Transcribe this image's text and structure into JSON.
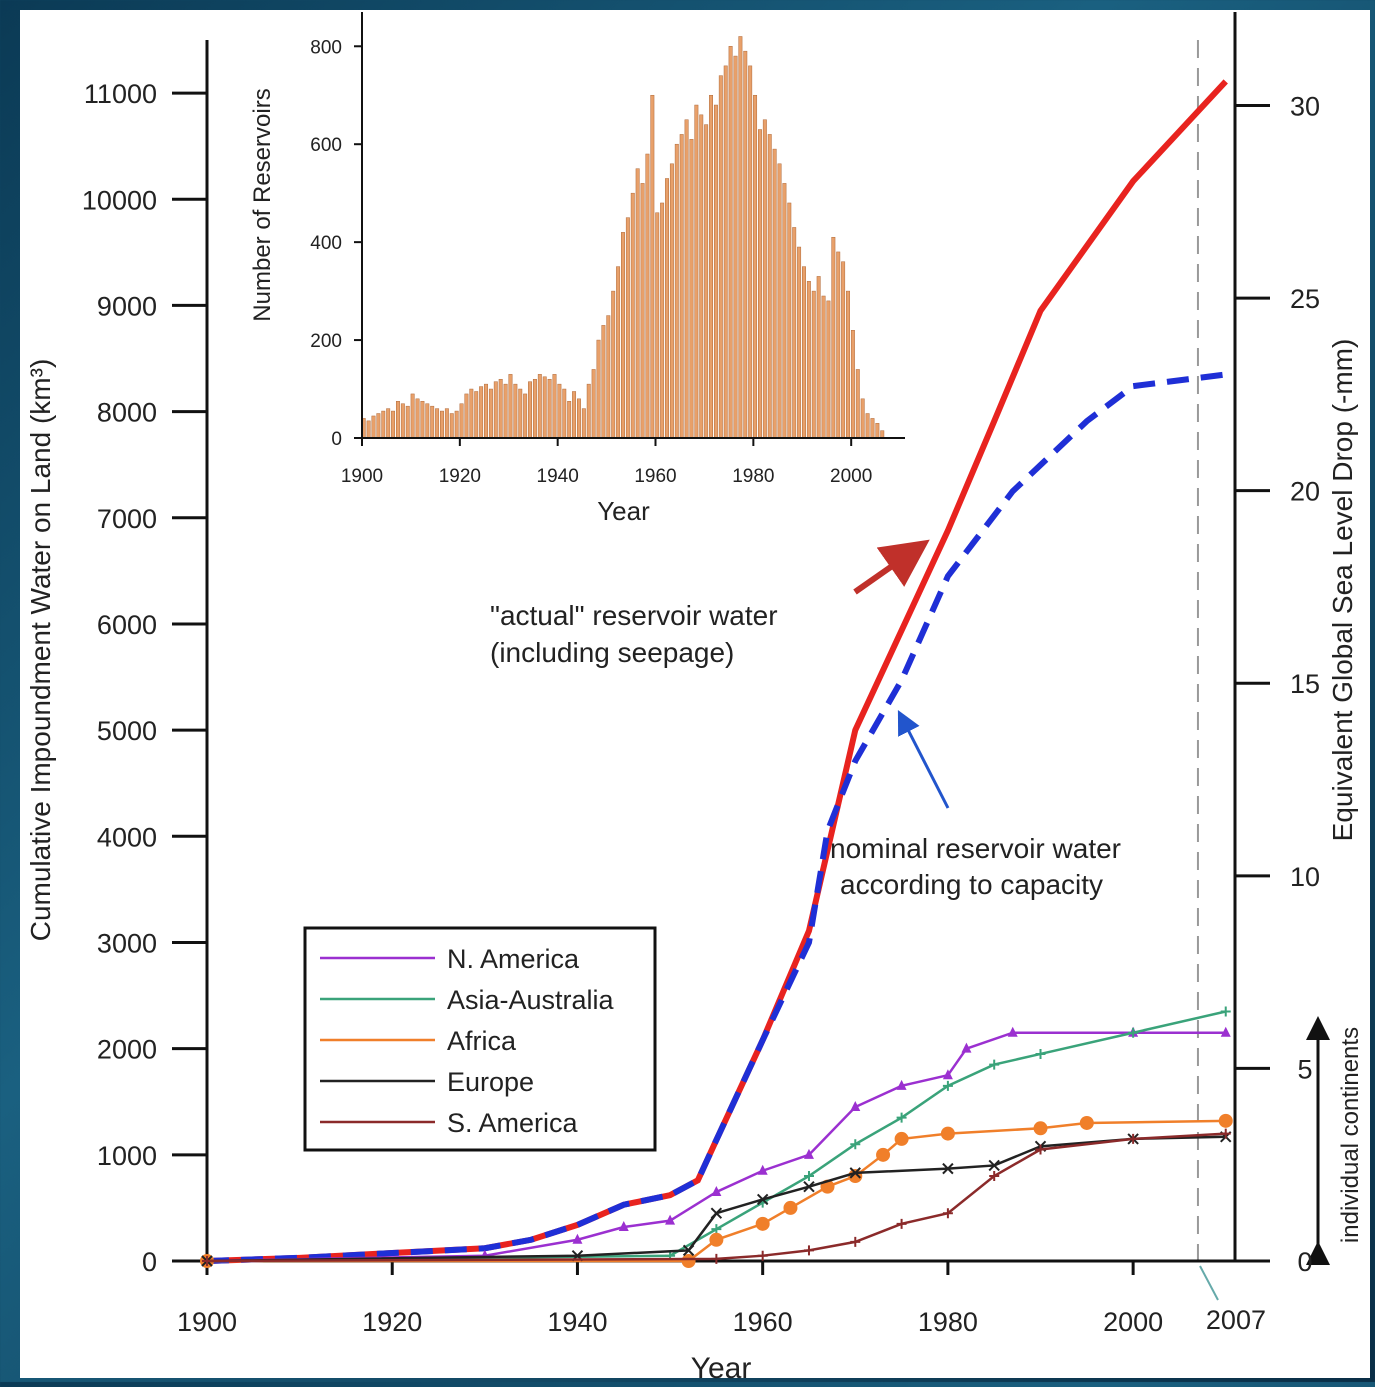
{
  "chart_data": [
    {
      "type": "line",
      "x_label": "Year",
      "y_label": "Cumulative Impoundment Water on Land (km³)",
      "y2_label": "Equivalent Global Sea Level Drop (-mm)",
      "xlim": [
        1900,
        2011
      ],
      "xticks": [
        1900,
        1920,
        1940,
        1960,
        1980,
        2000
      ],
      "ylim": [
        0,
        11500
      ],
      "yticks": [
        0,
        1000,
        2000,
        3000,
        4000,
        5000,
        6000,
        7000,
        8000,
        9000,
        10000,
        11000
      ],
      "y2lim": [
        0,
        31.7
      ],
      "y2ticks": [
        0,
        5,
        10,
        15,
        20,
        25,
        30
      ],
      "vline": 2007,
      "annotations": [
        "\"actual\" reservoir water",
        "(including seepage)",
        "nominal reservoir water",
        "according to capacity",
        "individual continents"
      ],
      "series": [
        {
          "color": "#e8231f",
          "style": "solid",
          "x": [
            1900,
            1910,
            1920,
            1930,
            1935,
            1940,
            1945,
            1950,
            1953,
            1955,
            1960,
            1965,
            1970,
            1975,
            1980,
            1985,
            1990,
            2000,
            2010
          ],
          "values": [
            0,
            30,
            75,
            120,
            200,
            340,
            530,
            620,
            760,
            1140,
            2080,
            3110,
            5000,
            5940,
            6880,
            7910,
            8950,
            10170,
            11110
          ]
        },
        {
          "color": "#1f2fd6",
          "style": "dashed",
          "x": [
            1900,
            1910,
            1920,
            1930,
            1935,
            1940,
            1945,
            1950,
            1953,
            1955,
            1960,
            1965,
            1967,
            1970,
            1975,
            1980,
            1987,
            1995,
            2000,
            2010
          ],
          "values": [
            0,
            30,
            75,
            120,
            200,
            340,
            530,
            620,
            760,
            1140,
            2080,
            3000,
            4050,
            4710,
            5470,
            6450,
            7250,
            7910,
            8240,
            8350
          ]
        },
        {
          "name": "N. America",
          "color": "#9b30d0",
          "marker": "triangle",
          "x": [
            1900,
            1930,
            1940,
            1945,
            1950,
            1955,
            1960,
            1965,
            1970,
            1975,
            1980,
            1982,
            1987,
            2000,
            2010
          ],
          "values": [
            0,
            50,
            200,
            320,
            380,
            650,
            850,
            1000,
            1450,
            1650,
            1750,
            2000,
            2150,
            2150,
            2150
          ]
        },
        {
          "name": "Asia-Australia",
          "color": "#3aa37a",
          "marker": "plus",
          "x": [
            1900,
            1950,
            1955,
            1960,
            1965,
            1970,
            1975,
            1980,
            1985,
            1990,
            2000,
            2010
          ],
          "values": [
            0,
            50,
            300,
            550,
            800,
            1100,
            1350,
            1650,
            1850,
            1950,
            2150,
            2350
          ]
        },
        {
          "name": "Africa",
          "color": "#f07f2a",
          "marker": "circle",
          "x": [
            1900,
            1952,
            1955,
            1960,
            1963,
            1967,
            1970,
            1973,
            1975,
            1980,
            1990,
            1995,
            2010
          ],
          "values": [
            0,
            0,
            200,
            350,
            500,
            700,
            800,
            1000,
            1150,
            1200,
            1250,
            1300,
            1320
          ]
        },
        {
          "name": "Europe",
          "color": "#222222",
          "marker": "x",
          "x": [
            1900,
            1940,
            1952,
            1955,
            1960,
            1965,
            1970,
            1980,
            1985,
            1990,
            2000,
            2010
          ],
          "values": [
            0,
            50,
            100,
            450,
            580,
            700,
            830,
            870,
            900,
            1080,
            1150,
            1170
          ]
        },
        {
          "name": "S. America",
          "color": "#8b2a2a",
          "marker": "plus",
          "x": [
            1900,
            1955,
            1960,
            1965,
            1970,
            1975,
            1980,
            1985,
            1990,
            2000,
            2010
          ],
          "values": [
            0,
            20,
            50,
            100,
            180,
            350,
            450,
            800,
            1050,
            1150,
            1200
          ]
        }
      ]
    },
    {
      "type": "bar",
      "x_label": "Year",
      "y_label": "Number of Reservoirs",
      "color": "#e8a06a",
      "xlim": [
        1900,
        2011
      ],
      "xticks": [
        1900,
        1920,
        1940,
        1960,
        1980,
        2000
      ],
      "ylim": [
        0,
        870
      ],
      "yticks": [
        0,
        200,
        400,
        600,
        800
      ],
      "x": [
        1900,
        1901,
        1902,
        1903,
        1904,
        1905,
        1906,
        1907,
        1908,
        1909,
        1910,
        1911,
        1912,
        1913,
        1914,
        1915,
        1916,
        1917,
        1918,
        1919,
        1920,
        1921,
        1922,
        1923,
        1924,
        1925,
        1926,
        1927,
        1928,
        1929,
        1930,
        1931,
        1932,
        1933,
        1934,
        1935,
        1936,
        1937,
        1938,
        1939,
        1940,
        1941,
        1942,
        1943,
        1944,
        1945,
        1946,
        1947,
        1948,
        1949,
        1950,
        1951,
        1952,
        1953,
        1954,
        1955,
        1956,
        1957,
        1958,
        1959,
        1960,
        1961,
        1962,
        1963,
        1964,
        1965,
        1966,
        1967,
        1968,
        1969,
        1970,
        1971,
        1972,
        1973,
        1974,
        1975,
        1976,
        1977,
        1978,
        1979,
        1980,
        1981,
        1982,
        1983,
        1984,
        1985,
        1986,
        1987,
        1988,
        1989,
        1990,
        1991,
        1992,
        1993,
        1994,
        1995,
        1996,
        1997,
        1998,
        1999,
        2000,
        2001,
        2002,
        2003,
        2004,
        2005,
        2006
      ],
      "values": [
        40,
        35,
        45,
        50,
        55,
        60,
        55,
        75,
        70,
        65,
        90,
        80,
        75,
        70,
        65,
        60,
        55,
        60,
        50,
        55,
        70,
        90,
        100,
        95,
        105,
        110,
        100,
        115,
        120,
        110,
        130,
        110,
        100,
        90,
        115,
        120,
        130,
        125,
        120,
        130,
        110,
        100,
        75,
        95,
        80,
        60,
        110,
        140,
        200,
        230,
        250,
        300,
        350,
        420,
        450,
        500,
        550,
        520,
        580,
        700,
        460,
        480,
        530,
        560,
        600,
        620,
        650,
        610,
        680,
        660,
        640,
        700,
        680,
        740,
        760,
        800,
        780,
        820,
        790,
        760,
        700,
        630,
        650,
        620,
        590,
        560,
        520,
        480,
        430,
        390,
        350,
        320,
        300,
        330,
        290,
        280,
        410,
        380,
        360,
        300,
        220,
        140,
        80,
        50,
        40,
        30,
        15
      ]
    }
  ]
}
